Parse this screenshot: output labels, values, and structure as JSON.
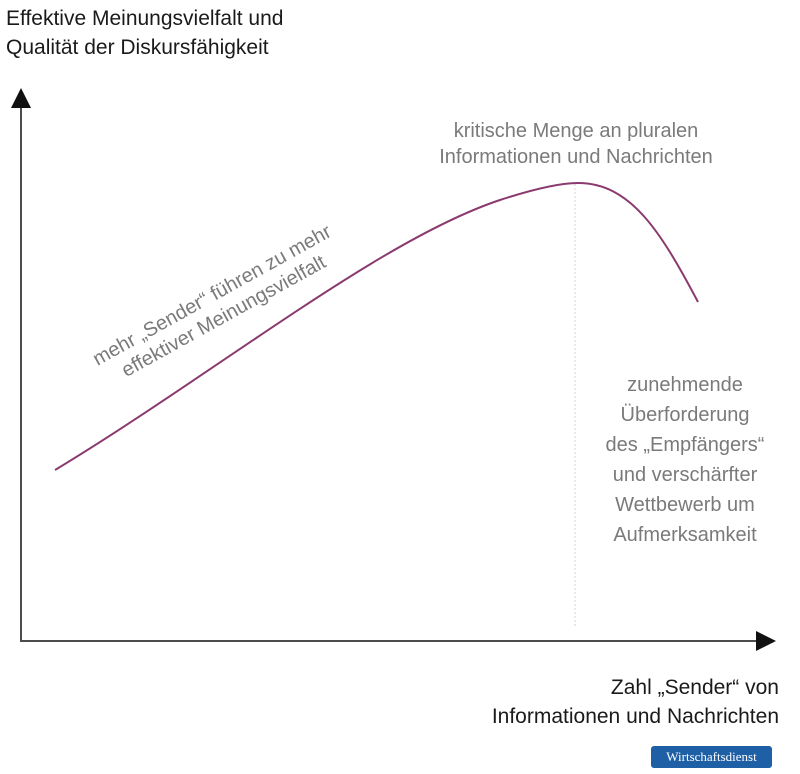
{
  "y_axis_label": [
    "Effektive Meinungsvielfalt und",
    "Qualität der Diskursfähigkeit"
  ],
  "x_axis_label": [
    "Zahl „Sender“ von",
    "Informationen und Nachrichten"
  ],
  "annotations": {
    "peak": [
      "kritische Menge an pluralen",
      "Informationen und Nachrichten"
    ],
    "rise": [
      "mehr „Sender“ führen zu mehr",
      "effektiver Meinungsvielfalt"
    ],
    "decline": [
      "zunehmende",
      "Überforderung",
      "des „Empfängers“",
      "und verschärfter",
      "Wettbewerb um",
      "Aufmerksamkeit"
    ]
  },
  "publisher_badge": "Wirtschaftsdienst",
  "colors": {
    "curve": "#8a3a6e",
    "axis": "#111111",
    "annotation_text": "#7a7a7a",
    "badge": "#1f5fa6"
  }
}
